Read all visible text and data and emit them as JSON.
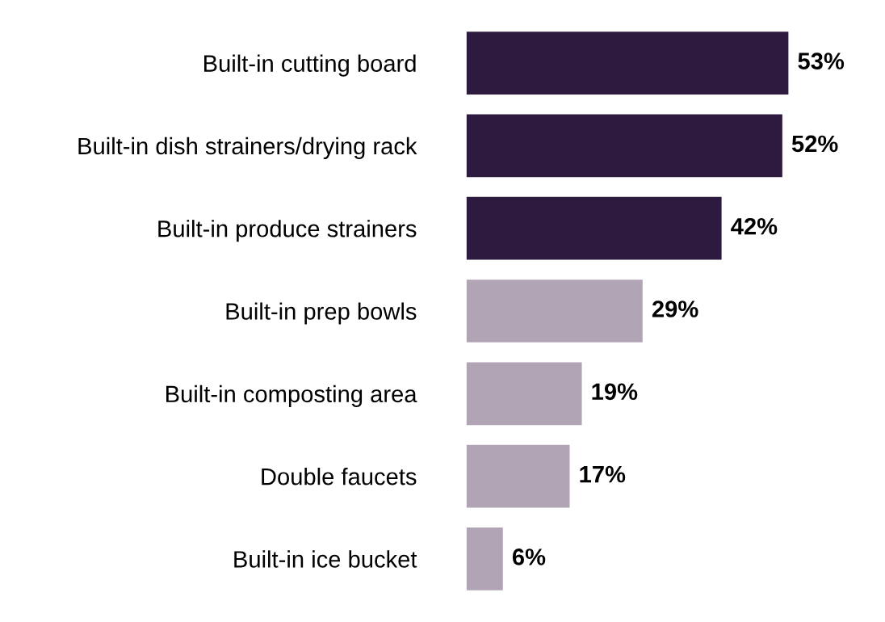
{
  "chart_data": {
    "type": "bar",
    "orientation": "horizontal",
    "categories": [
      "Built-in cutting board",
      "Built-in dish strainers/drying rack",
      "Built-in produce strainers",
      "Built-in prep bowls",
      "Built-in composting area",
      "Double faucets",
      "Built-in ice bucket"
    ],
    "values": [
      53,
      52,
      42,
      29,
      19,
      17,
      6
    ],
    "colors": [
      "#2e1a3f",
      "#2e1a3f",
      "#2e1a3f",
      "#b1a5b5",
      "#b1a5b5",
      "#b1a5b5",
      "#b1a5b5"
    ],
    "value_labels": [
      "53%",
      "52%",
      "42%",
      "29%",
      "19%",
      "17%",
      "6%"
    ],
    "grid": false,
    "legend": false,
    "tick_labels": "y"
  }
}
